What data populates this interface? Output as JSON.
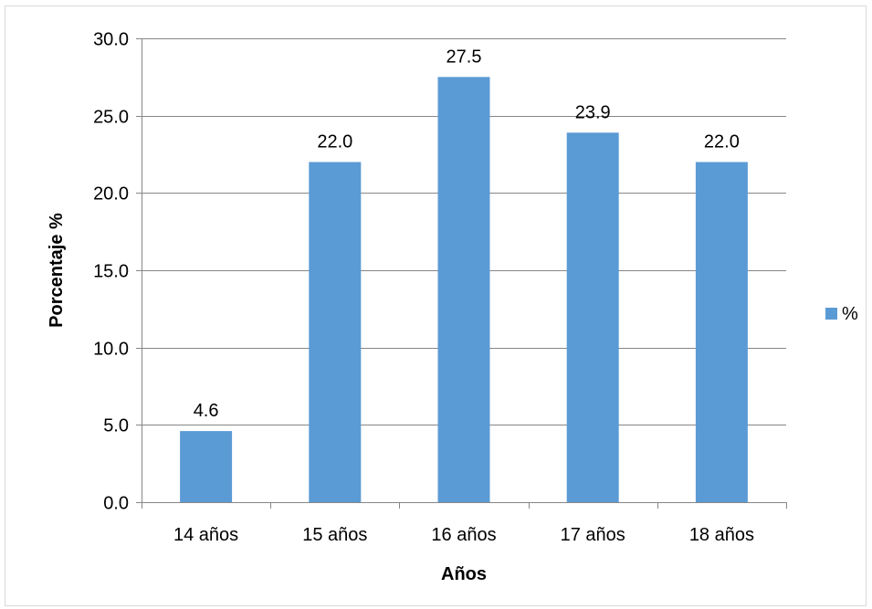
{
  "chart_data": {
    "type": "bar",
    "categories": [
      "14 años",
      "15 años",
      "16 años",
      "17 años",
      "18 años"
    ],
    "series": [
      {
        "name": "%",
        "values": [
          4.6,
          22.0,
          27.5,
          23.9,
          22.0
        ],
        "color": "#5b9bd5"
      }
    ],
    "value_labels": [
      "4.6",
      "22.0",
      "27.5",
      "23.9",
      "22.0"
    ],
    "title": "",
    "xlabel": "Años",
    "ylabel": "Porcentaje %",
    "ylim": [
      0,
      30
    ],
    "ytick_values": [
      0,
      5,
      10,
      15,
      20,
      25,
      30
    ],
    "yticks": [
      "0.0",
      "5.0",
      "10.0",
      "15.0",
      "20.0",
      "25.0",
      "30.0"
    ],
    "grid": true,
    "legend_position": "right"
  }
}
